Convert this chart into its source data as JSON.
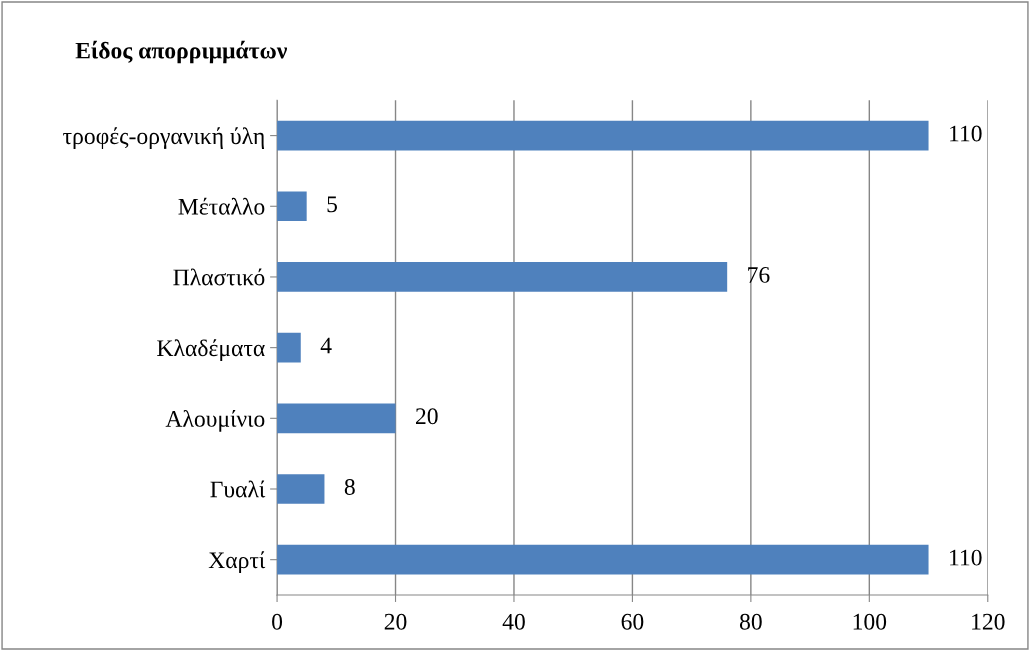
{
  "chart_data": {
    "type": "bar",
    "orientation": "horizontal",
    "title": "Είδος απορριμμάτων",
    "categories": [
      "τροφές-οργανική ύλη",
      "Μέταλλο",
      "Πλαστικό",
      "Κλαδέματα",
      "Αλουμίνιο",
      "Γυαλί",
      "Χαρτί"
    ],
    "values": [
      110,
      5,
      76,
      4,
      20,
      8,
      110
    ],
    "color": "#4f81bd",
    "xlim": [
      0,
      120
    ],
    "xticks": [
      0,
      20,
      40,
      60,
      80,
      100,
      120
    ],
    "grid": "x",
    "data_labels": true,
    "legend": false
  }
}
